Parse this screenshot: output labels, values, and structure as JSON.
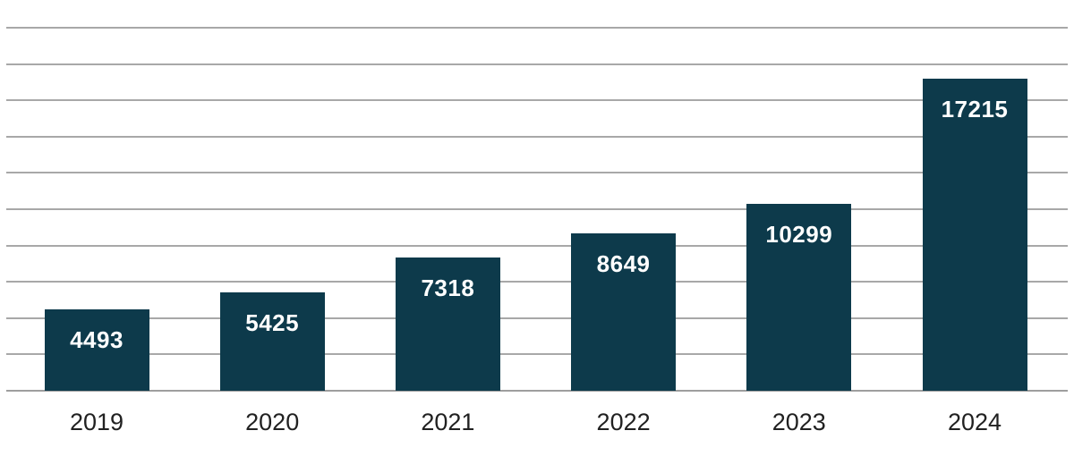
{
  "chart_data": {
    "type": "bar",
    "title": "",
    "xlabel": "",
    "ylabel": "",
    "categories": [
      "2019",
      "2020",
      "2021",
      "2022",
      "2023",
      "2024"
    ],
    "values": [
      4493,
      5425,
      7318,
      8649,
      10299,
      17215
    ],
    "data_labels": [
      "4493",
      "5425",
      "7318",
      "8649",
      "10299",
      "17215"
    ],
    "ylim": [
      0,
      20000
    ],
    "gridline_step": 2000,
    "grid": true,
    "legend": "none",
    "y_axis_tick_labels_visible": false,
    "colors": {
      "bar_fill": "#0d3a4b",
      "bar_value_label": "#ffffff",
      "gridline": "#a8a8a8",
      "axis_line": "#9e9e9e",
      "x_tick_label": "#212121",
      "background": "#ffffff"
    }
  }
}
